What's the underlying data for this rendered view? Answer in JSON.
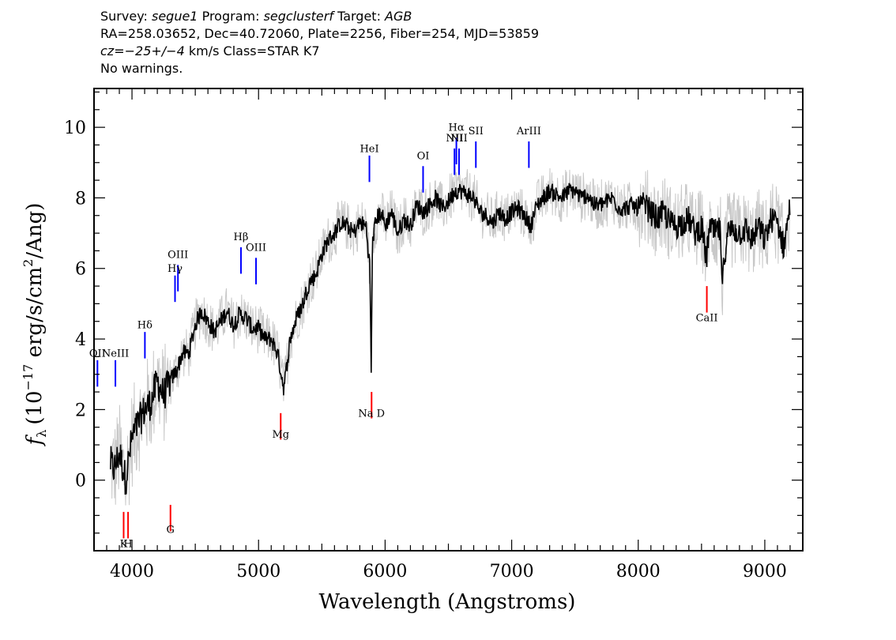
{
  "header": {
    "line1": {
      "survey_label": "Survey:",
      "survey": "segue1",
      "program_label": "Program:",
      "program": "segclusterf",
      "target_label": "Target:",
      "target": "AGB"
    },
    "line2": "RA=258.03652, Dec=40.72060, Plate=2256, Fiber=254, MJD=53859",
    "line3": {
      "cz_label": "cz",
      "cz_value": "=−25+/−4",
      "rest": " km/s Class=STAR K7"
    },
    "line4": "No warnings."
  },
  "chart_data": {
    "type": "line",
    "title": "",
    "xlabel": "Wavelength (Angstroms)",
    "ylabel": "f_λ (10^-17 erg/s/cm^2/Ang)",
    "ylabel_parts": {
      "f": "f",
      "sub": "λ",
      "a": "(10",
      "exp1": "−17",
      "b": " erg/s/cm",
      "exp2": "2",
      "c": "/Ang)"
    },
    "xlim": [
      3700,
      9300
    ],
    "ylim": [
      -2.0,
      11.1
    ],
    "x_ticks": [
      4000,
      5000,
      6000,
      7000,
      8000,
      9000
    ],
    "x_tick_labels": [
      "4000",
      "5000",
      "6000",
      "7000",
      "8000",
      "9000"
    ],
    "y_ticks": [
      0,
      2,
      4,
      6,
      8,
      10
    ],
    "y_tick_labels": [
      "0",
      "2",
      "4",
      "6",
      "8",
      "10"
    ],
    "series": [
      {
        "role": "flux",
        "color": "#000000",
        "x": [
          3830,
          3860,
          3900,
          3950,
          4000,
          4050,
          4100,
          4150,
          4200,
          4250,
          4300,
          4350,
          4400,
          4450,
          4500,
          4550,
          4600,
          4650,
          4700,
          4750,
          4800,
          4850,
          4900,
          4950,
          5000,
          5050,
          5100,
          5150,
          5200,
          5250,
          5300,
          5350,
          5400,
          5450,
          5500,
          5550,
          5600,
          5650,
          5700,
          5750,
          5800,
          5850,
          5880,
          5890,
          5900,
          5930,
          5970,
          6000,
          6050,
          6100,
          6150,
          6200,
          6250,
          6300,
          6350,
          6400,
          6450,
          6500,
          6550,
          6600,
          6650,
          6700,
          6750,
          6800,
          6850,
          6900,
          6950,
          7000,
          7050,
          7100,
          7150,
          7200,
          7250,
          7300,
          7350,
          7400,
          7450,
          7500,
          7550,
          7600,
          7650,
          7700,
          7750,
          7800,
          7850,
          7900,
          7950,
          8000,
          8050,
          8100,
          8150,
          8200,
          8250,
          8300,
          8350,
          8400,
          8450,
          8500,
          8540,
          8560,
          8600,
          8650,
          8660,
          8700,
          8750,
          8800,
          8850,
          8900,
          8950,
          9000,
          9050,
          9100,
          9150,
          9200
        ],
        "y": [
          0.5,
          0.3,
          0.8,
          0.0,
          1.2,
          1.6,
          2.0,
          2.2,
          2.8,
          2.4,
          2.8,
          3.1,
          3.6,
          3.6,
          4.4,
          4.8,
          4.5,
          4.2,
          4.5,
          4.8,
          4.4,
          4.7,
          4.6,
          4.3,
          4.3,
          4.0,
          4.0,
          3.6,
          2.6,
          4.0,
          4.6,
          5.0,
          5.6,
          5.8,
          6.4,
          6.8,
          7.0,
          7.3,
          7.2,
          7.0,
          7.3,
          7.2,
          6.0,
          3.0,
          6.8,
          7.4,
          7.6,
          7.2,
          7.6,
          7.0,
          7.4,
          7.2,
          7.8,
          7.6,
          7.8,
          8.0,
          7.7,
          7.9,
          8.2,
          8.2,
          8.1,
          8.0,
          7.6,
          7.5,
          7.3,
          7.6,
          7.4,
          7.6,
          7.7,
          7.5,
          7.2,
          7.8,
          8.0,
          8.2,
          8.1,
          8.0,
          8.2,
          8.2,
          8.0,
          8.1,
          7.8,
          7.8,
          7.9,
          8.0,
          7.7,
          7.7,
          7.8,
          7.7,
          7.8,
          7.6,
          7.4,
          7.6,
          7.3,
          7.2,
          7.3,
          7.4,
          7.0,
          7.2,
          6.2,
          7.2,
          7.0,
          7.1,
          5.4,
          7.0,
          7.1,
          7.0,
          7.1,
          6.8,
          7.2,
          6.8,
          7.4,
          7.3,
          6.6,
          7.8
        ]
      }
    ],
    "line_labels": [
      {
        "text": "HeI",
        "x": 5876,
        "y": 9.2,
        "color": "#0000ff",
        "label_y": 9.3
      },
      {
        "text": "OI",
        "x": 6300,
        "y": 8.9,
        "color": "#0000ff",
        "label_y": 9.1
      },
      {
        "text": "NII",
        "x": 6548,
        "y": 9.4,
        "color": "#0000ff",
        "label_y": 9.6
      },
      {
        "text": "Hα",
        "x": 6563,
        "y": 9.7,
        "color": "#0000ff",
        "label_y": 9.9
      },
      {
        "text": "NII",
        "x": 6584,
        "y": 9.4,
        "color": "#0000ff",
        "label_y": 9.6
      },
      {
        "text": "SII",
        "x": 6717,
        "y": 9.6,
        "color": "#0000ff",
        "label_y": 9.8
      },
      {
        "text": "ArIII",
        "x": 7136,
        "y": 9.6,
        "color": "#0000ff",
        "label_y": 9.8
      },
      {
        "text": "Hβ",
        "x": 4861,
        "y": 6.6,
        "color": "#0000ff",
        "label_y": 6.8
      },
      {
        "text": "OIII",
        "x": 4980,
        "y": 6.3,
        "color": "#0000ff",
        "label_y": 6.5
      },
      {
        "text": "OIII",
        "x": 4363,
        "y": 6.1,
        "color": "#0000ff",
        "label_y": 6.3
      },
      {
        "text": "Hγ",
        "x": 4340,
        "y": 5.8,
        "color": "#0000ff",
        "label_y": 5.9
      },
      {
        "text": "Hδ",
        "x": 4102,
        "y": 4.2,
        "color": "#0000ff",
        "label_y": 4.3
      },
      {
        "text": "NeIII",
        "x": 3869,
        "y": 3.4,
        "color": "#0000ff",
        "label_y": 3.5
      },
      {
        "text": "OII",
        "x": 3727,
        "y": 3.4,
        "color": "#0000ff",
        "label_y": 3.5
      },
      {
        "text": "Na D",
        "x": 5893,
        "y": 2.5,
        "color": "#ff0000",
        "label_y": 1.8
      },
      {
        "text": "Mg",
        "x": 5175,
        "y": 1.9,
        "color": "#ff0000",
        "label_y": 1.2
      },
      {
        "text": "G",
        "x": 4304,
        "y": -0.7,
        "color": "#ff0000",
        "label_y": -1.5
      },
      {
        "text": "K",
        "x": 3934,
        "y": -0.9,
        "color": "#ff0000",
        "label_y": -1.9
      },
      {
        "text": "H",
        "x": 3969,
        "y": -0.9,
        "color": "#ff0000",
        "label_y": -1.9
      },
      {
        "text": "CaII",
        "x": 8542,
        "y": 5.5,
        "color": "#ff0000",
        "label_y": 4.5
      }
    ]
  }
}
